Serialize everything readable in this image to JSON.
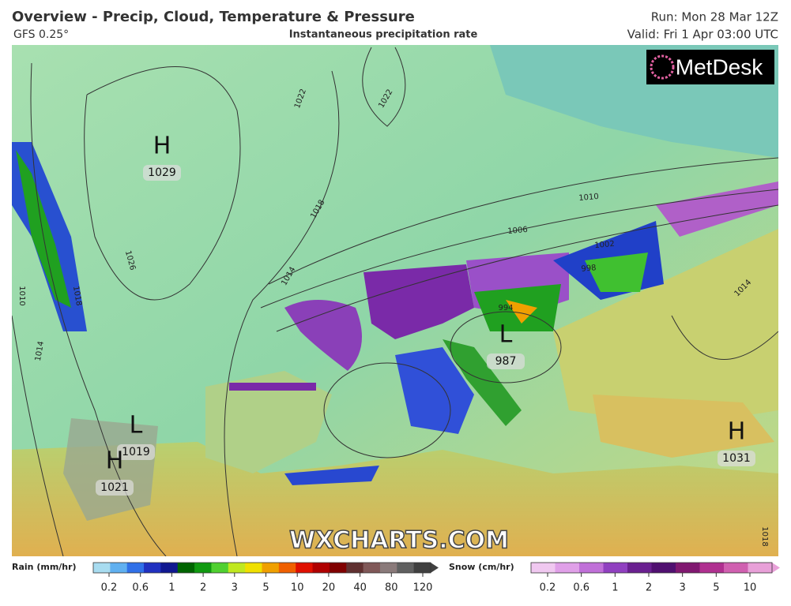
{
  "header": {
    "title": "Overview - Precip, Cloud, Temperature & Pressure",
    "model": "GFS 0.25°",
    "product": "Instantaneous precipitation rate",
    "run": "Run: Mon 28 Mar 12Z",
    "valid": "Valid: Fri 1 Apr 03:00 UTC"
  },
  "logo": "MetDesk",
  "watermark": "WXCHARTS.COM",
  "pressure_centers": [
    {
      "type": "H",
      "value": 1029
    },
    {
      "type": "L",
      "value": 987
    },
    {
      "type": "L",
      "value": 1019
    },
    {
      "type": "H",
      "value": 1021
    },
    {
      "type": "H",
      "value": 1031
    }
  ],
  "isobar_labels": [
    1022,
    1022,
    1018,
    1026,
    1010,
    1018,
    1014,
    1014,
    1010,
    1006,
    1002,
    998,
    994,
    1014,
    1018
  ],
  "legend": {
    "rain": {
      "title": "Rain (mm/hr)",
      "ticks": [
        0.2,
        0.6,
        1,
        2,
        3,
        5,
        10,
        20,
        40,
        80,
        120
      ],
      "colors": [
        "#a8dcf0",
        "#60b0f0",
        "#3070e8",
        "#2030c0",
        "#101890",
        "#006400",
        "#109a10",
        "#50d030",
        "#c0e820",
        "#f0e000",
        "#f0a000",
        "#f06000",
        "#e01000",
        "#b00000",
        "#800000",
        "#603030",
        "#805858",
        "#8a7a7a",
        "#606060",
        "#404040"
      ]
    },
    "snow": {
      "title": "Snow (cm/hr)",
      "ticks": [
        0.2,
        0.6,
        1,
        2,
        3,
        5,
        10
      ],
      "colors": [
        "#f0c8f0",
        "#e0a0e8",
        "#c070d8",
        "#9040c0",
        "#6a2090",
        "#501070",
        "#801870",
        "#b03090",
        "#d060b0",
        "#e8a0d8"
      ]
    }
  }
}
